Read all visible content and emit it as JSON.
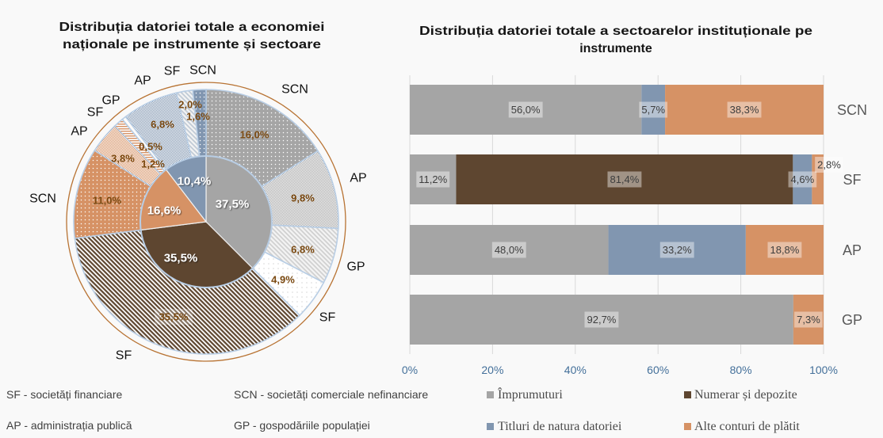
{
  "sector_legend": [
    {
      "text": "SF - societăți financiare"
    },
    {
      "text": "SCN - societăți comerciale nefinanciare"
    },
    {
      "text": "AP - administrația publică"
    },
    {
      "text": "GP - gospodăriile populației"
    }
  ],
  "colors": {
    "imprumuturi": "#a5a5a5",
    "numerar": "#5e4630",
    "titluri": "#8196b0",
    "alte": "#d69265",
    "outer_value_label": "#7b4a12",
    "axis_tick": "#44709a",
    "ring_outline": "#b8cde4",
    "outer_circle": "#b87333",
    "gridline": "#d9d9d9"
  },
  "chart_data": [
    {
      "type": "pie",
      "subtype": "nested-doughnut",
      "title_lines": [
        "Distribuția datoriei totale a economiei",
        "naționale  pe instrumente și sectoare"
      ],
      "inner": {
        "labels": [
          "Împrumuturi",
          "Numerar și depozite",
          "Alte conturi de plătit",
          "Titluri de natura datoriei"
        ],
        "values": [
          37.5,
          35.5,
          16.6,
          10.4
        ],
        "colors": [
          "#a5a5a5",
          "#5e4630",
          "#d69265",
          "#8196b0"
        ]
      },
      "outer": [
        {
          "sector": "SCN",
          "instrument": "Împrumuturi",
          "group": 0,
          "value": 16.0
        },
        {
          "sector": "AP",
          "instrument": "Împrumuturi",
          "group": 0,
          "value": 9.8
        },
        {
          "sector": "GP",
          "instrument": "Împrumuturi",
          "group": 0,
          "value": 6.8
        },
        {
          "sector": "SF",
          "instrument": "Împrumuturi",
          "group": 0,
          "value": 4.9
        },
        {
          "sector": "SF",
          "instrument": "Numerar și depozite",
          "group": 1,
          "value": 35.5
        },
        {
          "sector": "SCN",
          "instrument": "Alte conturi de plătit",
          "group": 2,
          "value": 11.0
        },
        {
          "sector": "AP",
          "instrument": "Alte conturi de plătit",
          "group": 2,
          "value": 3.8
        },
        {
          "sector": "SF",
          "instrument": "Alte conturi de plătit",
          "group": 2,
          "value": 1.2
        },
        {
          "sector": "GP",
          "instrument": "Alte conturi de plătit",
          "group": 2,
          "value": 0.5
        },
        {
          "sector": "AP",
          "instrument": "Titluri de natura datoriei",
          "group": 3,
          "value": 6.8
        },
        {
          "sector": "SF",
          "instrument": "Titluri de natura datoriei",
          "group": 3,
          "value": 2.0
        },
        {
          "sector": "SCN",
          "instrument": "Titluri de natura datoriei",
          "group": 3,
          "value": 1.6
        }
      ],
      "unit": "%"
    },
    {
      "type": "bar",
      "orientation": "horizontal",
      "stacked": true,
      "percent": true,
      "title_lines": [
        "Distribuția datoriei totale a sectoarelor instituționale pe",
        "instrumente"
      ],
      "categories": [
        "SCN",
        "SF",
        "AP",
        "GP"
      ],
      "series": [
        {
          "name": "Împrumuturi",
          "color": "#a5a5a5",
          "values": [
            56.0,
            11.2,
            48.0,
            92.7
          ]
        },
        {
          "name": "Numerar și depozite",
          "color": "#5e4630",
          "values": [
            0,
            81.4,
            0,
            0
          ]
        },
        {
          "name": "Titluri de natura datoriei",
          "color": "#8196b0",
          "values": [
            5.7,
            4.6,
            33.2,
            0
          ]
        },
        {
          "name": "Alte conturi de plătit",
          "color": "#d69265",
          "values": [
            38.3,
            2.8,
            18.8,
            7.3
          ]
        }
      ],
      "xlim": [
        0,
        100
      ],
      "xticks": [
        "0%",
        "20%",
        "40%",
        "60%",
        "80%",
        "100%"
      ],
      "xlabel": "",
      "ylabel": "",
      "grid": "vertical",
      "legend": {
        "position": "bottom",
        "entries": [
          "Împrumuturi",
          "Numerar și depozite",
          "Titluri de natura datoriei",
          "Alte conturi de plătit"
        ]
      }
    }
  ]
}
